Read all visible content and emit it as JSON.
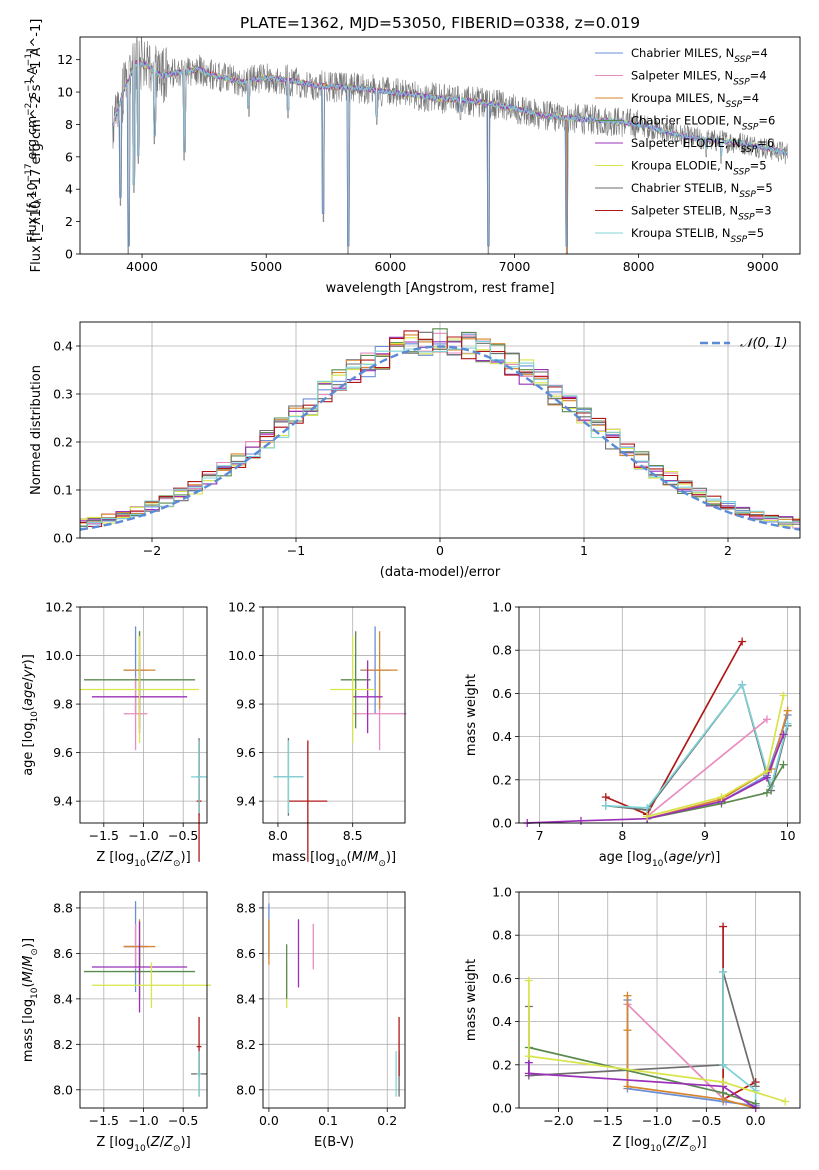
{
  "figure": {
    "title": "PLATE=1362, MJD=53050, FIBERID=0338, z=0.019",
    "colors": {
      "chabrier_miles": "#6b8fd6",
      "salpeter_miles": "#e88cc0",
      "kroupa_miles": "#d6862c",
      "chabrier_elodie": "#5b8a4f",
      "salpeter_elodie": "#9b30b8",
      "kroupa_elodie": "#d8e44a",
      "chabrier_stelib": "#6e6e6e",
      "salpeter_stelib": "#b01818",
      "kroupa_stelib": "#7fd3d6"
    }
  },
  "chart_data": [
    {
      "id": "spectrum",
      "type": "line",
      "xlabel": "wavelength [Angstrom, rest frame]",
      "ylabel": "Flux [f_λ10^-17 erg cm^-2 s^-1 A^-1]",
      "xlim": [
        3500,
        9300
      ],
      "ylim": [
        0,
        13.4
      ],
      "xticks": [
        4000,
        5000,
        6000,
        7000,
        8000,
        9000
      ],
      "yticks": [
        0,
        2,
        4,
        6,
        8,
        10,
        12
      ],
      "grid": false,
      "legend_position": "upper-right",
      "legend": [
        {
          "key": "chabrier_miles",
          "label": "Chabrier MILES, N",
          "sub": "SSP",
          "tail": "=4"
        },
        {
          "key": "salpeter_miles",
          "label": "Salpeter MILES, N",
          "sub": "SSP",
          "tail": "=4"
        },
        {
          "key": "kroupa_miles",
          "label": "Kroupa MILES, N",
          "sub": "SSP",
          "tail": "=4"
        },
        {
          "key": "chabrier_elodie",
          "label": "Chabrier ELODIE, N",
          "sub": "SSP",
          "tail": "=6"
        },
        {
          "key": "salpeter_elodie",
          "label": "Salpeter ELODIE, N",
          "sub": "SSP",
          "tail": "=6"
        },
        {
          "key": "kroupa_elodie",
          "label": "Kroupa ELODIE, N",
          "sub": "SSP",
          "tail": "=5"
        },
        {
          "key": "chabrier_stelib",
          "label": "Chabrier STELIB, N",
          "sub": "SSP",
          "tail": "=5"
        },
        {
          "key": "salpeter_stelib",
          "label": "Salpeter STELIB, N",
          "sub": "SSP",
          "tail": "=3"
        },
        {
          "key": "kroupa_stelib",
          "label": "Kroupa STELIB, N",
          "sub": "SSP",
          "tail": "=5"
        }
      ],
      "continuum": {
        "x": [
          3760,
          3850,
          3950,
          4050,
          4150,
          4300,
          4450,
          4600,
          4800,
          5000,
          5200,
          5400,
          5600,
          5800,
          6000,
          6200,
          6400,
          6600,
          6800,
          7000,
          7200,
          7400,
          7600,
          7800,
          8000,
          8200,
          8400,
          8600,
          8800,
          9000,
          9200
        ],
        "y": [
          7.8,
          10.0,
          11.8,
          11.6,
          11.0,
          11.2,
          11.4,
          11.0,
          10.6,
          10.9,
          10.7,
          10.4,
          10.3,
          10.2,
          10.0,
          9.8,
          9.6,
          9.5,
          9.3,
          9.0,
          8.6,
          8.4,
          8.3,
          8.2,
          8.0,
          7.6,
          7.2,
          7.0,
          6.9,
          6.6,
          6.2
        ]
      },
      "absorption_features": [
        {
          "x": 3825,
          "y": 3.0
        },
        {
          "x": 3890,
          "y": 0.0
        },
        {
          "x": 3935,
          "y": 3.8
        },
        {
          "x": 3970,
          "y": 5.6
        },
        {
          "x": 4100,
          "y": 6.8
        },
        {
          "x": 4340,
          "y": 5.8
        },
        {
          "x": 4860,
          "y": 8.5
        },
        {
          "x": 5175,
          "y": 8.4
        },
        {
          "x": 5460,
          "y": 2.0
        },
        {
          "x": 5660,
          "y": 0.0
        },
        {
          "x": 5890,
          "y": 8.0
        },
        {
          "x": 6565,
          "y": 8.3
        },
        {
          "x": 6790,
          "y": 0.0
        },
        {
          "x": 7420,
          "y": 0.0
        },
        {
          "x": 8500,
          "y": 6.5
        },
        {
          "x": 8545,
          "y": 6.0
        },
        {
          "x": 8665,
          "y": 5.6
        }
      ]
    },
    {
      "id": "residuals",
      "type": "line",
      "xlabel": "(data-model)/error",
      "ylabel": "Normed distribution",
      "xlim": [
        -2.5,
        2.5
      ],
      "ylim": [
        0,
        0.45
      ],
      "xticks": [
        -2,
        -1,
        0,
        1,
        2
      ],
      "yticks": [
        0.0,
        0.1,
        0.2,
        0.3,
        0.4
      ],
      "grid": true,
      "legend_position": "upper-right",
      "legend": [
        {
          "label": "𝒩(0, 1)",
          "style": "dashed"
        }
      ],
      "bin_width": 0.1,
      "reference_curve": {
        "type": "normal",
        "mean": 0,
        "sd": 1,
        "color": "#5b8ad6"
      }
    },
    {
      "id": "age_vs_Z",
      "type": "errorbar",
      "xlabel": "Z [log10(Z/Z☉)]",
      "ylabel": "age [log10(age/yr)]",
      "xlim": [
        -1.8,
        -0.2
      ],
      "ylim": [
        9.31,
        10.2
      ],
      "xticks": [
        -1.5,
        -1.0,
        -0.5
      ],
      "yticks": [
        9.4,
        9.6,
        9.8,
        10.0,
        10.2
      ],
      "grid": true,
      "points": [
        {
          "key": "chabrier_miles",
          "x": -1.1,
          "xerr": 0.15,
          "y": 9.94,
          "yerr": 0.18
        },
        {
          "key": "salpeter_miles",
          "x": -1.1,
          "xerr": 0.15,
          "y": 9.76,
          "yerr": 0.15
        },
        {
          "key": "kroupa_miles",
          "x": -1.05,
          "xerr": 0.2,
          "y": 9.94,
          "yerr": 0.16
        },
        {
          "key": "chabrier_elodie",
          "x": -1.05,
          "xerr": 0.7,
          "y": 9.9,
          "yerr": 0.2
        },
        {
          "key": "salpeter_elodie",
          "x": -1.05,
          "xerr": 0.6,
          "y": 9.83,
          "yerr": 0.15
        },
        {
          "key": "kroupa_elodie",
          "x": -1.05,
          "xerr": 0.75,
          "y": 9.86,
          "yerr": 0.22
        },
        {
          "key": "chabrier_stelib",
          "x": -0.3,
          "xerr": 0.03,
          "y": 9.5,
          "yerr": 0.16
        },
        {
          "key": "salpeter_stelib",
          "x": -0.3,
          "xerr": 0.03,
          "y": 9.4,
          "yerr": 0.25
        },
        {
          "key": "kroupa_stelib",
          "x": -0.3,
          "xerr": 0.1,
          "y": 9.5,
          "yerr": 0.15
        }
      ]
    },
    {
      "id": "age_vs_mass",
      "type": "errorbar",
      "xlabel": "mass [log10(M/M☉)]",
      "ylabel": "",
      "xlim": [
        7.9,
        8.85
      ],
      "ylim": [
        9.31,
        10.2
      ],
      "xticks": [
        8.0,
        8.5
      ],
      "yticks": [
        9.4,
        9.6,
        9.8,
        10.0,
        10.2
      ],
      "grid": true,
      "points": [
        {
          "key": "chabrier_miles",
          "x": 8.65,
          "xerr": 0.1,
          "y": 9.94,
          "yerr": 0.18
        },
        {
          "key": "salpeter_miles",
          "x": 8.68,
          "xerr": 0.18,
          "y": 9.76,
          "yerr": 0.15
        },
        {
          "key": "kroupa_miles",
          "x": 8.68,
          "xerr": 0.12,
          "y": 9.94,
          "yerr": 0.16
        },
        {
          "key": "chabrier_elodie",
          "x": 8.52,
          "xerr": 0.1,
          "y": 9.9,
          "yerr": 0.2
        },
        {
          "key": "salpeter_elodie",
          "x": 8.6,
          "xerr": 0.1,
          "y": 9.83,
          "yerr": 0.15
        },
        {
          "key": "kroupa_elodie",
          "x": 8.5,
          "xerr": 0.15,
          "y": 9.86,
          "yerr": 0.22
        },
        {
          "key": "chabrier_stelib",
          "x": 8.07,
          "xerr": 0.1,
          "y": 9.5,
          "yerr": 0.16
        },
        {
          "key": "salpeter_stelib",
          "x": 8.2,
          "xerr": 0.13,
          "y": 9.4,
          "yerr": 0.25
        },
        {
          "key": "kroupa_stelib",
          "x": 8.07,
          "xerr": 0.1,
          "y": 9.5,
          "yerr": 0.15
        }
      ]
    },
    {
      "id": "mass_weight_vs_age",
      "type": "line",
      "xlabel": "age [log10(age/yr)]",
      "ylabel": "mass weight",
      "xlim": [
        6.75,
        10.15
      ],
      "ylim": [
        0,
        1
      ],
      "xticks": [
        7,
        8,
        9,
        10
      ],
      "yticks": [
        0.0,
        0.2,
        0.4,
        0.6,
        0.8,
        1.0
      ],
      "grid": true,
      "series": [
        {
          "key": "salpeter_stelib",
          "x": [
            7.8,
            8.3,
            9.45
          ],
          "y": [
            0.12,
            0.04,
            0.84
          ]
        },
        {
          "key": "chabrier_stelib",
          "x": [
            7.8,
            8.3,
            9.45,
            9.8,
            10.0
          ],
          "y": [
            0.08,
            0.06,
            0.64,
            0.15,
            0.45
          ]
        },
        {
          "key": "kroupa_stelib",
          "x": [
            7.8,
            8.3,
            9.45,
            9.8,
            10.0
          ],
          "y": [
            0.08,
            0.07,
            0.64,
            0.17,
            0.46
          ]
        },
        {
          "key": "salpeter_miles",
          "x": [
            8.3,
            9.75
          ],
          "y": [
            0.03,
            0.48
          ]
        },
        {
          "key": "chabrier_miles",
          "x": [
            8.3,
            9.2,
            9.75,
            10.0
          ],
          "y": [
            0.02,
            0.1,
            0.22,
            0.5
          ]
        },
        {
          "key": "kroupa_miles",
          "x": [
            8.3,
            9.2,
            9.8,
            10.0
          ],
          "y": [
            0.02,
            0.11,
            0.25,
            0.52
          ]
        },
        {
          "key": "chabrier_elodie",
          "x": [
            8.3,
            9.2,
            9.75,
            9.95
          ],
          "y": [
            0.02,
            0.09,
            0.14,
            0.27
          ]
        },
        {
          "key": "salpeter_elodie",
          "x": [
            6.85,
            7.5,
            8.3,
            9.2,
            9.75,
            9.95
          ],
          "y": [
            0.0,
            0.01,
            0.02,
            0.1,
            0.21,
            0.41
          ]
        },
        {
          "key": "kroupa_elodie",
          "x": [
            8.3,
            9.2,
            9.75,
            9.95
          ],
          "y": [
            0.03,
            0.12,
            0.24,
            0.59
          ]
        }
      ]
    },
    {
      "id": "mass_vs_Z",
      "type": "errorbar",
      "xlabel": "Z [log10(Z/Z☉)]",
      "ylabel": "mass [log10(M/M☉)]",
      "xlim": [
        -1.8,
        -0.2
      ],
      "ylim": [
        7.92,
        8.87
      ],
      "xticks": [
        -1.5,
        -1.0,
        -0.5
      ],
      "yticks": [
        8.0,
        8.2,
        8.4,
        8.6,
        8.8
      ],
      "grid": true,
      "points": [
        {
          "key": "chabrier_miles",
          "x": -1.1,
          "xerr": 0.15,
          "y": 8.63,
          "yerr": 0.2
        },
        {
          "key": "salpeter_miles",
          "x": -1.1,
          "xerr": 0.15,
          "y": 8.63,
          "yerr": 0.1
        },
        {
          "key": "kroupa_miles",
          "x": -1.05,
          "xerr": 0.2,
          "y": 8.63,
          "yerr": 0.12
        },
        {
          "key": "chabrier_elodie",
          "x": -1.05,
          "xerr": 0.7,
          "y": 8.52,
          "yerr": 0.12
        },
        {
          "key": "salpeter_elodie",
          "x": -1.05,
          "xerr": 0.6,
          "y": 8.54,
          "yerr": 0.2
        },
        {
          "key": "kroupa_elodie",
          "x": -0.9,
          "xerr": 0.75,
          "y": 8.46,
          "yerr": 0.1
        },
        {
          "key": "chabrier_stelib",
          "x": -0.3,
          "xerr": 0.1,
          "y": 8.07,
          "yerr": 0.1
        },
        {
          "key": "salpeter_stelib",
          "x": -0.3,
          "xerr": 0.03,
          "y": 8.19,
          "yerr": 0.13
        },
        {
          "key": "kroupa_stelib",
          "x": -0.3,
          "xerr": 0.03,
          "y": 8.07,
          "yerr": 0.1
        }
      ]
    },
    {
      "id": "mass_vs_EBV",
      "type": "errorbar",
      "xlabel": "E(B-V)",
      "ylabel": "",
      "xlim": [
        -0.01,
        0.23
      ],
      "ylim": [
        7.92,
        8.87
      ],
      "xticks": [
        0.0,
        0.1,
        0.2
      ],
      "yticks": [
        8.0,
        8.2,
        8.4,
        8.6,
        8.8
      ],
      "grid": true,
      "points": [
        {
          "key": "chabrier_miles",
          "x": 0.0,
          "y": 8.7,
          "yerr": 0.12
        },
        {
          "key": "kroupa_miles",
          "x": 0.0,
          "y": 8.65,
          "yerr": 0.1
        },
        {
          "key": "kroupa_elodie",
          "x": 0.03,
          "y": 8.46,
          "yerr": 0.1
        },
        {
          "key": "chabrier_elodie",
          "x": 0.03,
          "y": 8.52,
          "yerr": 0.12
        },
        {
          "key": "salpeter_elodie",
          "x": 0.05,
          "y": 8.6,
          "yerr": 0.15
        },
        {
          "key": "salpeter_miles",
          "x": 0.075,
          "y": 8.63,
          "yerr": 0.1
        },
        {
          "key": "chabrier_stelib",
          "x": 0.22,
          "y": 8.07,
          "yerr": 0.1
        },
        {
          "key": "salpeter_stelib",
          "x": 0.22,
          "y": 8.19,
          "yerr": 0.13
        },
        {
          "key": "kroupa_stelib",
          "x": 0.215,
          "y": 8.07,
          "yerr": 0.1
        }
      ]
    },
    {
      "id": "mass_weight_vs_Z",
      "type": "line",
      "xlabel": "Z [log10(Z/Z☉)]",
      "ylabel": "mass weight",
      "xlim": [
        -2.4,
        0.45
      ],
      "ylim": [
        0,
        1
      ],
      "xticks": [
        -2.0,
        -1.5,
        -1.0,
        -0.5,
        0.0
      ],
      "yticks": [
        0.0,
        0.2,
        0.4,
        0.6,
        0.8,
        1.0
      ],
      "grid": true,
      "series": [
        {
          "key": "salpeter_stelib",
          "x": [
            -0.33,
            -0.33,
            0.0
          ],
          "y": [
            0.84,
            0.04,
            0.12
          ]
        },
        {
          "key": "chabrier_stelib",
          "x": [
            -2.3,
            -2.3,
            -0.33,
            -0.33,
            0.0
          ],
          "y": [
            0.47,
            0.15,
            0.2,
            0.63,
            0.1
          ]
        },
        {
          "key": "kroupa_stelib",
          "x": [
            -0.33,
            -0.33,
            0.0,
            0.0
          ],
          "y": [
            0.63,
            0.2,
            0.08,
            0.0
          ]
        },
        {
          "key": "salpeter_miles",
          "x": [
            -1.3,
            -0.3
          ],
          "y": [
            0.48,
            0.03
          ]
        },
        {
          "key": "chabrier_miles",
          "x": [
            -1.3,
            -1.3,
            -0.33,
            0.0
          ],
          "y": [
            0.5,
            0.09,
            0.03,
            0.01
          ]
        },
        {
          "key": "kroupa_miles",
          "x": [
            -1.3,
            -1.3,
            -1.3,
            -0.33,
            0.0
          ],
          "y": [
            0.52,
            0.36,
            0.1,
            0.04,
            0.0
          ]
        },
        {
          "key": "chabrier_elodie",
          "x": [
            -2.3,
            -0.33,
            0.0
          ],
          "y": [
            0.28,
            0.07,
            0.02
          ]
        },
        {
          "key": "salpeter_elodie",
          "x": [
            -2.3,
            -2.3,
            -0.33,
            0.0
          ],
          "y": [
            0.21,
            0.16,
            0.1,
            0.0
          ]
        },
        {
          "key": "kroupa_elodie",
          "x": [
            -2.3,
            -2.3,
            -0.33,
            0.3
          ],
          "y": [
            0.59,
            0.24,
            0.12,
            0.03
          ]
        }
      ]
    }
  ]
}
